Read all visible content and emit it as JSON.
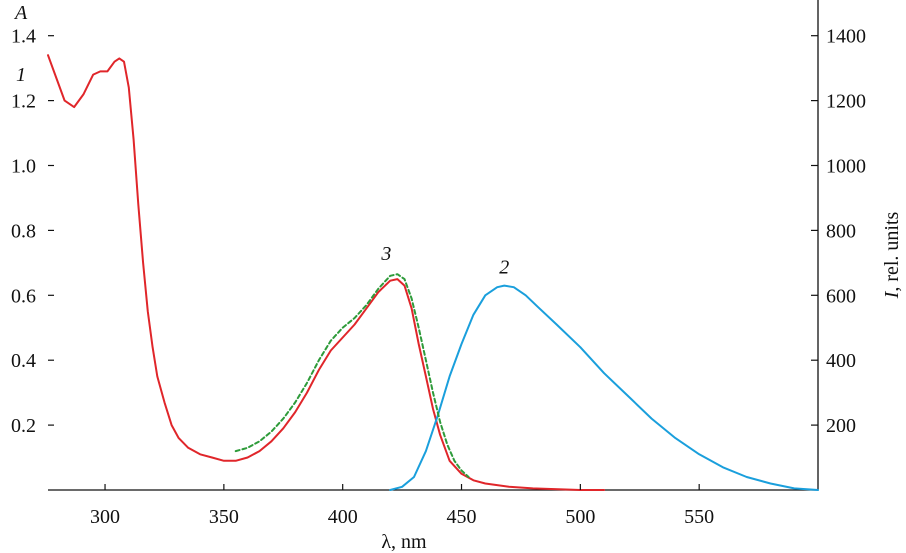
{
  "chart_data": {
    "type": "line",
    "title": "",
    "xlabel": "λ, nm",
    "ylabel_left": "A",
    "ylabel_right_italic": "I",
    "ylabel_right_rest": ", rel. units",
    "xlim": [
      276,
      600
    ],
    "ylim_left": [
      0.0,
      1.51
    ],
    "ylim_right": [
      0,
      1510
    ],
    "xticks": [
      300,
      350,
      400,
      450,
      500,
      550
    ],
    "yticks_left": [
      0.2,
      0.4,
      0.6,
      0.8,
      1.0,
      1.2,
      1.4
    ],
    "yticks_right": [
      200,
      400,
      600,
      800,
      1000,
      1200,
      1400
    ],
    "grid": false,
    "legend": "none",
    "series": [
      {
        "label": "1",
        "axis": "left",
        "color": "#e0262a",
        "style": "solid",
        "points": [
          [
            276,
            1.34
          ],
          [
            279,
            1.28
          ],
          [
            283,
            1.2
          ],
          [
            287,
            1.18
          ],
          [
            291,
            1.22
          ],
          [
            295,
            1.28
          ],
          [
            298,
            1.29
          ],
          [
            301,
            1.29
          ],
          [
            304,
            1.32
          ],
          [
            306,
            1.33
          ],
          [
            308,
            1.32
          ],
          [
            310,
            1.24
          ],
          [
            312,
            1.08
          ],
          [
            314,
            0.88
          ],
          [
            316,
            0.7
          ],
          [
            318,
            0.55
          ],
          [
            320,
            0.44
          ],
          [
            322,
            0.35
          ],
          [
            325,
            0.27
          ],
          [
            328,
            0.2
          ],
          [
            331,
            0.16
          ],
          [
            335,
            0.13
          ],
          [
            340,
            0.11
          ],
          [
            345,
            0.1
          ],
          [
            350,
            0.09
          ],
          [
            355,
            0.09
          ],
          [
            360,
            0.1
          ],
          [
            365,
            0.12
          ],
          [
            370,
            0.15
          ],
          [
            375,
            0.19
          ],
          [
            380,
            0.24
          ],
          [
            385,
            0.3
          ],
          [
            390,
            0.37
          ],
          [
            395,
            0.43
          ],
          [
            400,
            0.47
          ],
          [
            405,
            0.51
          ],
          [
            410,
            0.56
          ],
          [
            415,
            0.61
          ],
          [
            420,
            0.645
          ],
          [
            423,
            0.65
          ],
          [
            426,
            0.63
          ],
          [
            429,
            0.56
          ],
          [
            432,
            0.45
          ],
          [
            435,
            0.35
          ],
          [
            438,
            0.25
          ],
          [
            441,
            0.17
          ],
          [
            445,
            0.09
          ],
          [
            450,
            0.05
          ],
          [
            455,
            0.03
          ],
          [
            460,
            0.02
          ],
          [
            470,
            0.01
          ],
          [
            480,
            0.005
          ],
          [
            500,
            0.0
          ],
          [
            510,
            0.0
          ]
        ]
      },
      {
        "label": "2",
        "axis": "right",
        "color": "#1a9fdc",
        "style": "solid",
        "points": [
          [
            420,
            0
          ],
          [
            425,
            10
          ],
          [
            430,
            40
          ],
          [
            435,
            120
          ],
          [
            440,
            230
          ],
          [
            445,
            350
          ],
          [
            450,
            450
          ],
          [
            455,
            540
          ],
          [
            460,
            600
          ],
          [
            465,
            625
          ],
          [
            468,
            630
          ],
          [
            472,
            625
          ],
          [
            477,
            600
          ],
          [
            482,
            565
          ],
          [
            490,
            510
          ],
          [
            500,
            440
          ],
          [
            510,
            360
          ],
          [
            520,
            290
          ],
          [
            530,
            220
          ],
          [
            540,
            160
          ],
          [
            550,
            110
          ],
          [
            560,
            70
          ],
          [
            570,
            40
          ],
          [
            580,
            20
          ],
          [
            590,
            5
          ],
          [
            600,
            0
          ]
        ]
      },
      {
        "label": "3",
        "axis": "left",
        "color": "#2e9b3a",
        "style": "dashed",
        "points": [
          [
            355,
            0.12
          ],
          [
            360,
            0.13
          ],
          [
            365,
            0.15
          ],
          [
            370,
            0.18
          ],
          [
            375,
            0.22
          ],
          [
            380,
            0.27
          ],
          [
            385,
            0.33
          ],
          [
            390,
            0.4
          ],
          [
            395,
            0.46
          ],
          [
            400,
            0.5
          ],
          [
            405,
            0.53
          ],
          [
            410,
            0.57
          ],
          [
            415,
            0.62
          ],
          [
            420,
            0.66
          ],
          [
            423,
            0.665
          ],
          [
            426,
            0.65
          ],
          [
            429,
            0.59
          ],
          [
            432,
            0.5
          ],
          [
            435,
            0.4
          ],
          [
            438,
            0.3
          ],
          [
            441,
            0.21
          ],
          [
            444,
            0.14
          ],
          [
            447,
            0.09
          ],
          [
            450,
            0.06
          ],
          [
            453,
            0.04
          ]
        ]
      }
    ]
  }
}
